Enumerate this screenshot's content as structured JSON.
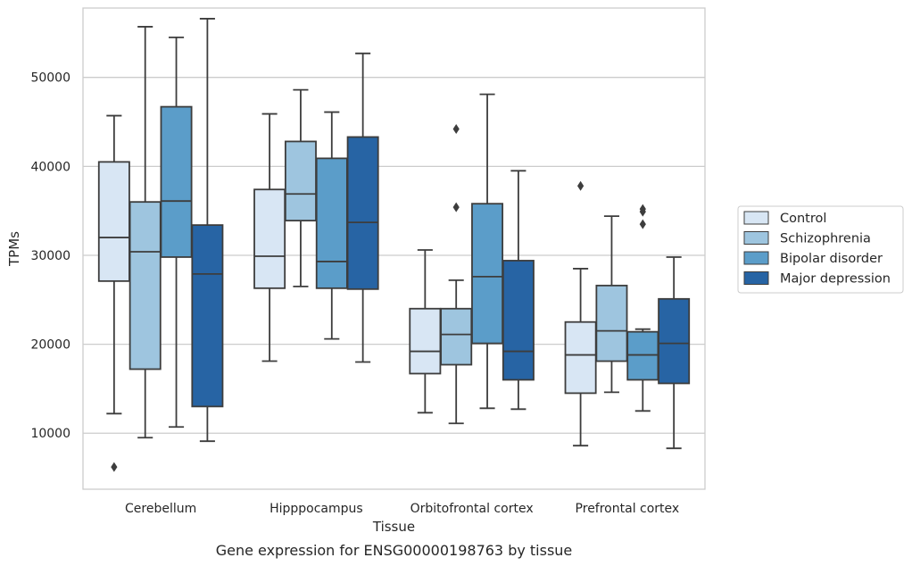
{
  "chart_data": {
    "type": "box",
    "title": "",
    "caption": "Gene expression for ENSG00000198763 by tissue",
    "xlabel": "Tissue",
    "ylabel": "TPMs",
    "ylim": [
      3700,
      57800
    ],
    "yticks": [
      10000,
      20000,
      30000,
      40000,
      50000
    ],
    "grid": "horizontal",
    "legend_position": "right",
    "categories": [
      "Cerebellum",
      "Hipppocampus",
      "Orbitofrontal cortex",
      "Prefrontal cortex"
    ],
    "series": [
      {
        "name": "Control",
        "color": "#d8e6f4",
        "boxes": [
          {
            "whisker_low": 12200,
            "q1": 27100,
            "median": 32000,
            "q3": 40500,
            "whisker_high": 45700,
            "outliers": [
              6200
            ]
          },
          {
            "whisker_low": 18100,
            "q1": 26300,
            "median": 29900,
            "q3": 37400,
            "whisker_high": 45900,
            "outliers": []
          },
          {
            "whisker_low": 12300,
            "q1": 16700,
            "median": 19200,
            "q3": 24000,
            "whisker_high": 30600,
            "outliers": []
          },
          {
            "whisker_low": 8600,
            "q1": 14500,
            "median": 18800,
            "q3": 22500,
            "whisker_high": 28500,
            "outliers": [
              37800
            ]
          }
        ]
      },
      {
        "name": "Schizophrenia",
        "color": "#9ec5df",
        "boxes": [
          {
            "whisker_low": 9500,
            "q1": 17200,
            "median": 30400,
            "q3": 36000,
            "whisker_high": 55700,
            "outliers": []
          },
          {
            "whisker_low": 26500,
            "q1": 33900,
            "median": 36900,
            "q3": 42800,
            "whisker_high": 48600,
            "outliers": []
          },
          {
            "whisker_low": 11100,
            "q1": 17700,
            "median": 21100,
            "q3": 24000,
            "whisker_high": 27200,
            "outliers": [
              35400,
              44200
            ]
          },
          {
            "whisker_low": 14600,
            "q1": 18100,
            "median": 21500,
            "q3": 26600,
            "whisker_high": 34400,
            "outliers": []
          }
        ]
      },
      {
        "name": "Bipolar disorder",
        "color": "#5b9dc9",
        "boxes": [
          {
            "whisker_low": 10700,
            "q1": 29800,
            "median": 36100,
            "q3": 46700,
            "whisker_high": 54500,
            "outliers": []
          },
          {
            "whisker_low": 20600,
            "q1": 26300,
            "median": 29300,
            "q3": 40900,
            "whisker_high": 46100,
            "outliers": []
          },
          {
            "whisker_low": 12800,
            "q1": 20100,
            "median": 27600,
            "q3": 35800,
            "whisker_high": 48100,
            "outliers": []
          },
          {
            "whisker_low": 12500,
            "q1": 16000,
            "median": 18800,
            "q3": 21400,
            "whisker_high": 21700,
            "outliers": [
              33500,
              34900,
              35200
            ]
          }
        ]
      },
      {
        "name": "Major depression",
        "color": "#2764a4",
        "boxes": [
          {
            "whisker_low": 9100,
            "q1": 13000,
            "median": 27900,
            "q3": 33400,
            "whisker_high": 56600,
            "outliers": []
          },
          {
            "whisker_low": 18000,
            "q1": 26200,
            "median": 33700,
            "q3": 43300,
            "whisker_high": 52700,
            "outliers": []
          },
          {
            "whisker_low": 12700,
            "q1": 16000,
            "median": 19200,
            "q3": 29400,
            "whisker_high": 39500,
            "outliers": []
          },
          {
            "whisker_low": 8300,
            "q1": 15600,
            "median": 20100,
            "q3": 25100,
            "whisker_high": 29800,
            "outliers": []
          }
        ]
      }
    ]
  }
}
